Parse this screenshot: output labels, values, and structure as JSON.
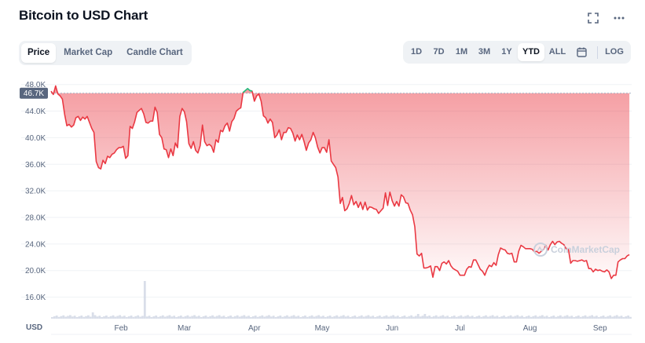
{
  "header": {
    "title": "Bitcoin to USD Chart"
  },
  "icons": {
    "expand": "expand-icon",
    "more": "more-options-icon",
    "calendar": "calendar-icon",
    "watermark": "coinmarketcap-logo-icon"
  },
  "tabs": [
    {
      "label": "Price",
      "active": true
    },
    {
      "label": "Market Cap",
      "active": false
    },
    {
      "label": "Candle Chart",
      "active": false
    }
  ],
  "ranges": [
    {
      "label": "1D",
      "active": false
    },
    {
      "label": "7D",
      "active": false
    },
    {
      "label": "1M",
      "active": false
    },
    {
      "label": "3M",
      "active": false
    },
    {
      "label": "1Y",
      "active": false
    },
    {
      "label": "YTD",
      "active": true
    },
    {
      "label": "ALL",
      "active": false
    }
  ],
  "log_label": "LOG",
  "watermark_text": "CoinMarketCap",
  "colors": {
    "down": "#ea3943",
    "up": "#16c784",
    "current_price_bg": "#58667e",
    "grid": "#eff2f5"
  },
  "chart_data": {
    "type": "line",
    "currency_label": "USD",
    "current_price_label": "46.7K",
    "current_price": 46700,
    "y_ticks": [
      "16.0K",
      "20.0K",
      "24.0K",
      "28.0K",
      "32.0K",
      "36.0K",
      "40.0K",
      "44.0K",
      "48.0K"
    ],
    "y_tick_values": [
      16000,
      20000,
      24000,
      28000,
      32000,
      36000,
      40000,
      44000,
      48000
    ],
    "ylim": [
      13000,
      49500
    ],
    "x_ticks": [
      "Feb",
      "Mar",
      "Apr",
      "May",
      "Jun",
      "Jul",
      "Aug",
      "Sep"
    ],
    "x_tick_days": [
      31,
      59,
      90,
      120,
      151,
      181,
      212,
      243
    ],
    "x_range_days": [
      0,
      257
    ],
    "x_unit": "days since Jan 1",
    "grid": true,
    "series": [
      {
        "name": "BTC/USD",
        "points": [
          [
            0,
            47000
          ],
          [
            1,
            46500
          ],
          [
            2,
            47800
          ],
          [
            3,
            46600
          ],
          [
            4,
            46300
          ],
          [
            5,
            45800
          ],
          [
            6,
            43500
          ],
          [
            7,
            41800
          ],
          [
            8,
            42000
          ],
          [
            9,
            41600
          ],
          [
            10,
            41900
          ],
          [
            11,
            43000
          ],
          [
            12,
            43200
          ],
          [
            13,
            42600
          ],
          [
            14,
            43100
          ],
          [
            15,
            42800
          ],
          [
            16,
            43200
          ],
          [
            17,
            42300
          ],
          [
            18,
            41400
          ],
          [
            19,
            40800
          ],
          [
            20,
            36400
          ],
          [
            21,
            35500
          ],
          [
            22,
            35300
          ],
          [
            23,
            36600
          ],
          [
            24,
            36100
          ],
          [
            25,
            37200
          ],
          [
            26,
            37000
          ],
          [
            27,
            37500
          ],
          [
            28,
            37700
          ],
          [
            29,
            38200
          ],
          [
            30,
            38500
          ],
          [
            31,
            38500
          ],
          [
            32,
            38700
          ],
          [
            33,
            36900
          ],
          [
            34,
            37300
          ],
          [
            35,
            41700
          ],
          [
            36,
            41400
          ],
          [
            37,
            42400
          ],
          [
            38,
            43800
          ],
          [
            39,
            44100
          ],
          [
            40,
            44400
          ],
          [
            41,
            43600
          ],
          [
            42,
            42300
          ],
          [
            43,
            42200
          ],
          [
            44,
            42500
          ],
          [
            45,
            42500
          ],
          [
            46,
            44600
          ],
          [
            47,
            43800
          ],
          [
            48,
            40500
          ],
          [
            49,
            40000
          ],
          [
            50,
            38300
          ],
          [
            51,
            38200
          ],
          [
            52,
            37000
          ],
          [
            53,
            38300
          ],
          [
            54,
            37300
          ],
          [
            55,
            39200
          ],
          [
            56,
            38500
          ],
          [
            57,
            43200
          ],
          [
            58,
            44400
          ],
          [
            59,
            43900
          ],
          [
            60,
            42400
          ],
          [
            61,
            39100
          ],
          [
            62,
            38400
          ],
          [
            63,
            39400
          ],
          [
            64,
            38100
          ],
          [
            65,
            37700
          ],
          [
            66,
            38800
          ],
          [
            67,
            41900
          ],
          [
            68,
            39400
          ],
          [
            69,
            38800
          ],
          [
            70,
            39000
          ],
          [
            71,
            38700
          ],
          [
            72,
            37800
          ],
          [
            73,
            39700
          ],
          [
            74,
            39300
          ],
          [
            75,
            41100
          ],
          [
            76,
            40900
          ],
          [
            77,
            41800
          ],
          [
            78,
            42200
          ],
          [
            79,
            41000
          ],
          [
            80,
            42400
          ],
          [
            81,
            42900
          ],
          [
            82,
            44000
          ],
          [
            83,
            44300
          ],
          [
            84,
            44500
          ],
          [
            85,
            46800
          ],
          [
            86,
            47100
          ],
          [
            87,
            47400
          ],
          [
            88,
            47100
          ],
          [
            89,
            47000
          ],
          [
            90,
            45500
          ],
          [
            91,
            46300
          ],
          [
            92,
            46600
          ],
          [
            93,
            45500
          ],
          [
            94,
            43300
          ],
          [
            95,
            43000
          ],
          [
            96,
            42200
          ],
          [
            97,
            42800
          ],
          [
            98,
            42300
          ],
          [
            99,
            40000
          ],
          [
            100,
            40400
          ],
          [
            101,
            41200
          ],
          [
            102,
            39700
          ],
          [
            103,
            40800
          ],
          [
            104,
            40800
          ],
          [
            105,
            41500
          ],
          [
            106,
            41400
          ],
          [
            107,
            40700
          ],
          [
            108,
            39500
          ],
          [
            109,
            40400
          ],
          [
            110,
            39700
          ],
          [
            111,
            40500
          ],
          [
            112,
            39400
          ],
          [
            113,
            38100
          ],
          [
            114,
            39200
          ],
          [
            115,
            39700
          ],
          [
            116,
            40800
          ],
          [
            117,
            40000
          ],
          [
            118,
            38600
          ],
          [
            119,
            37700
          ],
          [
            120,
            38500
          ],
          [
            121,
            38500
          ],
          [
            122,
            37800
          ],
          [
            123,
            39700
          ],
          [
            124,
            36500
          ],
          [
            125,
            36000
          ],
          [
            126,
            35500
          ],
          [
            127,
            34100
          ],
          [
            128,
            30100
          ],
          [
            129,
            31000
          ],
          [
            130,
            29000
          ],
          [
            131,
            29300
          ],
          [
            132,
            30100
          ],
          [
            133,
            31300
          ],
          [
            134,
            29900
          ],
          [
            135,
            30400
          ],
          [
            136,
            29500
          ],
          [
            137,
            30300
          ],
          [
            138,
            29200
          ],
          [
            139,
            30300
          ],
          [
            140,
            29100
          ],
          [
            141,
            29600
          ],
          [
            142,
            29500
          ],
          [
            143,
            29300
          ],
          [
            144,
            29200
          ],
          [
            145,
            28600
          ],
          [
            146,
            29000
          ],
          [
            147,
            29400
          ],
          [
            148,
            31700
          ],
          [
            149,
            29800
          ],
          [
            150,
            31800
          ],
          [
            151,
            30500
          ],
          [
            152,
            29700
          ],
          [
            153,
            30400
          ],
          [
            154,
            29700
          ],
          [
            155,
            31400
          ],
          [
            156,
            31100
          ],
          [
            157,
            30200
          ],
          [
            158,
            30100
          ],
          [
            159,
            29100
          ],
          [
            160,
            28400
          ],
          [
            161,
            26600
          ],
          [
            162,
            22500
          ],
          [
            163,
            22200
          ],
          [
            164,
            22600
          ],
          [
            165,
            20400
          ],
          [
            166,
            20400
          ],
          [
            167,
            20500
          ],
          [
            168,
            20700
          ],
          [
            169,
            19000
          ],
          [
            170,
            20600
          ],
          [
            171,
            20600
          ],
          [
            172,
            20000
          ],
          [
            173,
            21100
          ],
          [
            174,
            21300
          ],
          [
            175,
            21000
          ],
          [
            176,
            21500
          ],
          [
            177,
            20700
          ],
          [
            178,
            20300
          ],
          [
            179,
            20100
          ],
          [
            180,
            19900
          ],
          [
            181,
            19300
          ],
          [
            182,
            19300
          ],
          [
            183,
            19300
          ],
          [
            184,
            20200
          ],
          [
            185,
            20600
          ],
          [
            186,
            20500
          ],
          [
            187,
            21600
          ],
          [
            188,
            21600
          ],
          [
            189,
            20900
          ],
          [
            190,
            20200
          ],
          [
            191,
            19900
          ],
          [
            192,
            19300
          ],
          [
            193,
            20200
          ],
          [
            194,
            20800
          ],
          [
            195,
            20600
          ],
          [
            196,
            21200
          ],
          [
            197,
            20800
          ],
          [
            198,
            22400
          ],
          [
            199,
            23400
          ],
          [
            200,
            23200
          ],
          [
            201,
            23100
          ],
          [
            202,
            22600
          ],
          [
            203,
            22500
          ],
          [
            204,
            22600
          ],
          [
            205,
            21300
          ],
          [
            206,
            21300
          ],
          [
            207,
            22900
          ],
          [
            208,
            23800
          ],
          [
            209,
            23600
          ],
          [
            210,
            23300
          ],
          [
            211,
            23300
          ],
          [
            212,
            23300
          ],
          [
            213,
            23200
          ],
          [
            214,
            22800
          ],
          [
            215,
            22900
          ],
          [
            216,
            22600
          ],
          [
            217,
            22900
          ],
          [
            218,
            23200
          ],
          [
            219,
            23800
          ],
          [
            220,
            23100
          ],
          [
            221,
            23900
          ],
          [
            222,
            24400
          ],
          [
            223,
            23900
          ],
          [
            224,
            24300
          ],
          [
            225,
            24400
          ],
          [
            226,
            24100
          ],
          [
            227,
            23900
          ],
          [
            228,
            23300
          ],
          [
            229,
            23200
          ],
          [
            230,
            21100
          ],
          [
            231,
            21500
          ],
          [
            232,
            21500
          ],
          [
            233,
            21400
          ],
          [
            234,
            21500
          ],
          [
            235,
            21600
          ],
          [
            236,
            21400
          ],
          [
            237,
            21500
          ],
          [
            238,
            20300
          ],
          [
            239,
            20300
          ],
          [
            240,
            19800
          ],
          [
            241,
            20200
          ],
          [
            242,
            20000
          ],
          [
            243,
            20100
          ],
          [
            244,
            19900
          ],
          [
            245,
            19800
          ],
          [
            246,
            20100
          ],
          [
            247,
            19800
          ],
          [
            248,
            18800
          ],
          [
            249,
            19300
          ],
          [
            250,
            19300
          ],
          [
            251,
            21300
          ],
          [
            252,
            21600
          ],
          [
            253,
            21800
          ],
          [
            254,
            21800
          ],
          [
            255,
            22200
          ],
          [
            256,
            22400
          ]
        ]
      }
    ]
  }
}
